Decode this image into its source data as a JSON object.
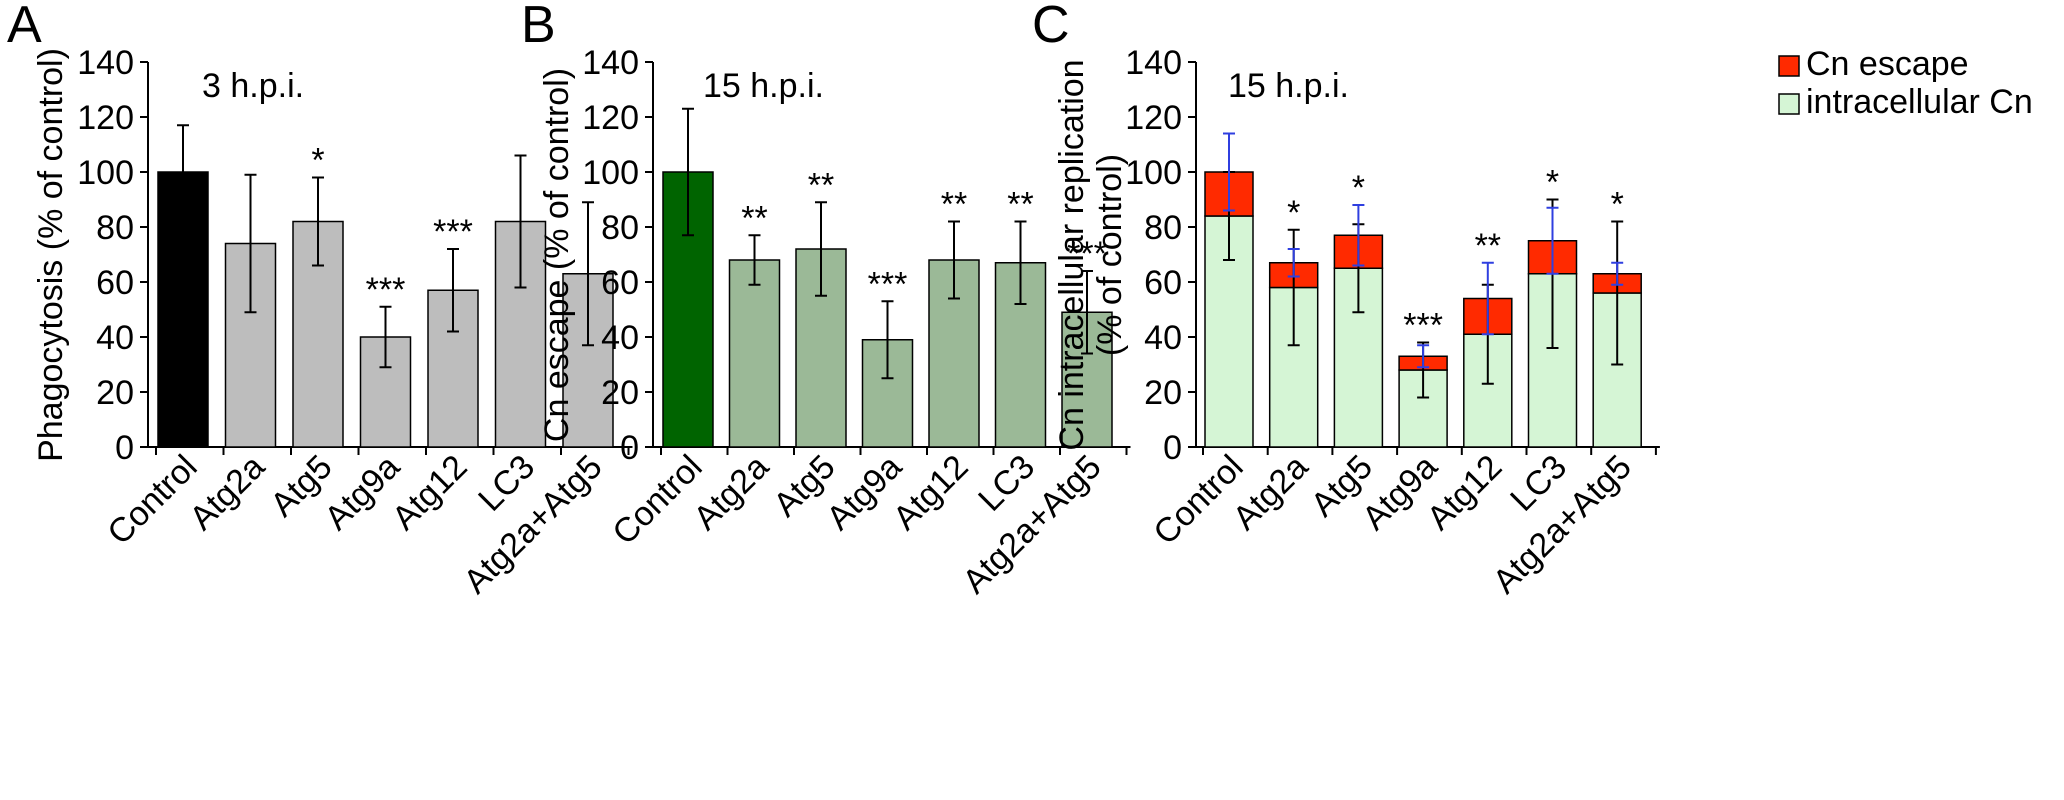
{
  "chart_data": [
    {
      "type": "bar",
      "panel": "A",
      "annotation": "3 h.p.i.",
      "ylabel": "Phagocytosis (% of control)",
      "ylim": [
        0,
        140
      ],
      "yticks": [
        "0",
        "20",
        "40",
        "60",
        "80",
        "100",
        "120",
        "140"
      ],
      "categories": [
        "Control",
        "Atg2a",
        "Atg5",
        "Atg9a",
        "Atg12",
        "LC3",
        "Atg2a+Atg5"
      ],
      "values": [
        100,
        74,
        82,
        40,
        57,
        82,
        63
      ],
      "errors": [
        17,
        25,
        16,
        11,
        15,
        24,
        26
      ],
      "significance": [
        "",
        "",
        "*",
        "***",
        "***",
        "",
        ""
      ],
      "colors": [
        "#000000",
        "#bdbdbd",
        "#bdbdbd",
        "#bdbdbd",
        "#bdbdbd",
        "#bdbdbd",
        "#bdbdbd"
      ]
    },
    {
      "type": "bar",
      "panel": "B",
      "annotation": "15 h.p.i.",
      "ylabel": "Cn escape (% of control)",
      "ylim": [
        0,
        140
      ],
      "yticks": [
        "0",
        "20",
        "40",
        "60",
        "80",
        "100",
        "120",
        "140"
      ],
      "categories": [
        "Control",
        "Atg2a",
        "Atg5",
        "Atg9a",
        "Atg12",
        "LC3",
        "Atg2a+Atg5"
      ],
      "values": [
        100,
        68,
        72,
        39,
        68,
        67,
        49
      ],
      "errors": [
        23,
        9,
        17,
        14,
        14,
        15,
        15
      ],
      "significance": [
        "",
        "**",
        "**",
        "***",
        "**",
        "**",
        "***"
      ],
      "colors": [
        "#006400",
        "#9bb997",
        "#9bb997",
        "#9bb997",
        "#9bb997",
        "#9bb997",
        "#9bb997"
      ]
    },
    {
      "type": "stacked_bar",
      "panel": "C",
      "annotation": "15 h.p.i.",
      "ylabel_lines": [
        "Cn intracellular replication",
        "(% of control)"
      ],
      "ylim": [
        0,
        140
      ],
      "yticks": [
        "0",
        "20",
        "40",
        "60",
        "80",
        "100",
        "120",
        "140"
      ],
      "categories": [
        "Control",
        "Atg2a",
        "Atg5",
        "Atg9a",
        "Atg12",
        "LC3",
        "Atg2a+Atg5"
      ],
      "series": [
        {
          "name": "intracellular Cn",
          "color": "#d5f5d5",
          "values": [
            84,
            58,
            65,
            28,
            41,
            63,
            56
          ],
          "errors": [
            16,
            21,
            16,
            10,
            18,
            27,
            26
          ],
          "error_color": "#000000"
        },
        {
          "name": "Cn escape",
          "color": "#ff2a00",
          "values": [
            16,
            9,
            12,
            5,
            13,
            12,
            7
          ],
          "errors": [
            14,
            5,
            11,
            4,
            13,
            12,
            4
          ],
          "error_color": "#2f3fe0"
        }
      ],
      "significance": [
        "",
        "*",
        "*",
        "***",
        "**",
        "*",
        "*"
      ],
      "legend": {
        "position": "top-right",
        "entries": [
          "Cn escape",
          "intracellular Cn"
        ]
      }
    }
  ]
}
